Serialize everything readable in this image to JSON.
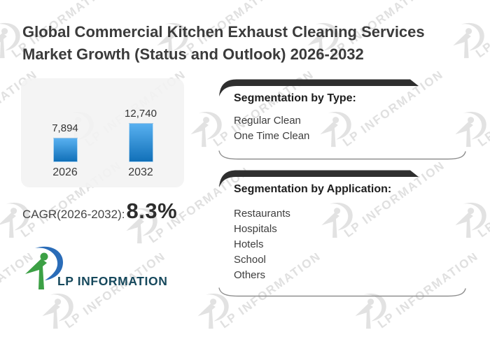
{
  "title": {
    "lines": [
      "Global Commercial Kitchen Exhaust Cleaning Services",
      "Market Growth (Status and Outlook) 2026-2032"
    ]
  },
  "chart_data": {
    "type": "bar",
    "categories": [
      "2026",
      "2032"
    ],
    "values": [
      7894,
      12740
    ],
    "values_formatted": [
      "7,894",
      "12,740"
    ],
    "title": "",
    "xlabel": "",
    "ylabel": "",
    "ylim": [
      0,
      12740
    ],
    "grid": false,
    "legend": false,
    "bar_gradient_top": "#58b0f0",
    "bar_gradient_bottom": "#1170b8"
  },
  "cagr": {
    "label": "CAGR(2026-2032):",
    "value": "8.3%"
  },
  "panels": [
    {
      "heading": "Segmentation by Type:",
      "items": [
        "Regular Clean",
        "One Time Clean"
      ]
    },
    {
      "heading": "Segmentation by Application:",
      "items": [
        "Restaurants",
        "Hospitals",
        "Hotels",
        "School",
        "Others"
      ]
    }
  ],
  "logo": {
    "text": "LP INFORMATION",
    "colors": {
      "green": "#3ca045",
      "blue": "#2a6cb8",
      "text": "#16485c"
    }
  },
  "watermark": {
    "text": "LP INFORMATION"
  },
  "colors": {
    "title_text": "#3b3b3b",
    "swoosh": "#2f2f2f",
    "card_bg": "#f2f2f2",
    "divider_line": "#8f8f8f"
  }
}
